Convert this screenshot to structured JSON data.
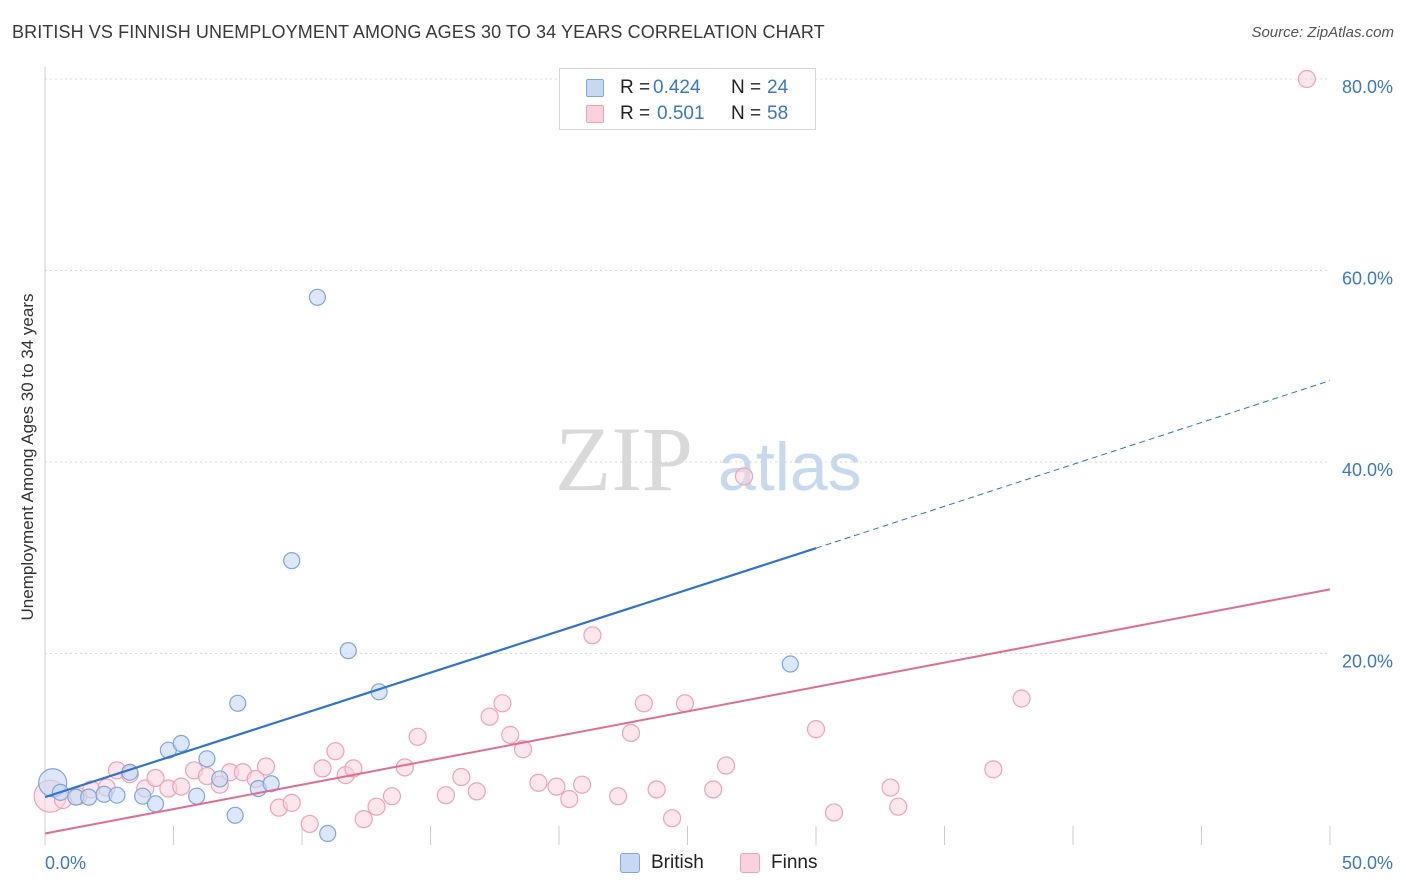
{
  "title": "BRITISH VS FINNISH UNEMPLOYMENT AMONG AGES 30 TO 34 YEARS CORRELATION CHART",
  "source": "Source: ZipAtlas.com",
  "watermark": {
    "zip": "ZIP",
    "atlas": "atlas"
  },
  "legend": {
    "british": {
      "r_label": "R =",
      "r_value": "0.424",
      "n_label": "N =",
      "n_value": "24"
    },
    "finns": {
      "r_label": "R =",
      "r_value": "0.501",
      "n_label": "N =",
      "n_value": "58"
    }
  },
  "colors": {
    "british_fill": "#c5d9f5",
    "british_stroke": "#7ea7dd",
    "british_line": "#2e74d0",
    "finns_fill": "#fbd1dd",
    "finns_stroke": "#eea3b9",
    "finns_line": "#e06d94",
    "axis_text": "#3a78cc",
    "grid": "#d9d9d9"
  },
  "chart_data": {
    "type": "scatter",
    "title": "BRITISH VS FINNISH UNEMPLOYMENT AMONG AGES 30 TO 34 YEARS CORRELATION CHART",
    "xlabel": "",
    "ylabel": "Unemployment Among Ages 30 to 34 years",
    "xlim": [
      0,
      50
    ],
    "ylim": [
      0,
      82
    ],
    "x_tick_labels": [
      "0.0%",
      "50.0%"
    ],
    "y_ticks": [
      20,
      40,
      60,
      80
    ],
    "y_tick_labels": [
      "20.0%",
      "40.0%",
      "60.0%",
      "80.0%"
    ],
    "grid": true,
    "legend_position": "top-center",
    "series": [
      {
        "name": "British",
        "r": 0.424,
        "n": 24,
        "points": [
          [
            0.3,
            6.5
          ],
          [
            0.6,
            5.5
          ],
          [
            1.2,
            5.0
          ],
          [
            1.7,
            5.0
          ],
          [
            2.3,
            5.3
          ],
          [
            2.8,
            5.2
          ],
          [
            3.3,
            7.6
          ],
          [
            3.8,
            5.1
          ],
          [
            4.3,
            4.3
          ],
          [
            4.8,
            9.9
          ],
          [
            5.3,
            10.6
          ],
          [
            5.9,
            5.1
          ],
          [
            6.3,
            9.0
          ],
          [
            6.8,
            6.9
          ],
          [
            7.4,
            3.1
          ],
          [
            7.5,
            14.8
          ],
          [
            8.3,
            5.9
          ],
          [
            8.8,
            6.4
          ],
          [
            9.6,
            29.7
          ],
          [
            10.6,
            57.2
          ],
          [
            11.0,
            1.2
          ],
          [
            11.8,
            20.3
          ],
          [
            13.0,
            16.0
          ],
          [
            29.0,
            18.9
          ]
        ],
        "trend": {
          "x0": 0,
          "y0": 5.0,
          "x1": 30,
          "y1": 31.0,
          "dashed_to_x": 50,
          "dashed_to_y": 48.5
        }
      },
      {
        "name": "Finns",
        "r": 0.501,
        "n": 58,
        "points": [
          [
            0.2,
            5.1
          ],
          [
            0.7,
            4.7
          ],
          [
            1.3,
            5.1
          ],
          [
            1.8,
            5.8
          ],
          [
            2.4,
            6.0
          ],
          [
            2.8,
            7.8
          ],
          [
            3.3,
            7.4
          ],
          [
            3.9,
            5.9
          ],
          [
            4.3,
            7.0
          ],
          [
            4.8,
            5.9
          ],
          [
            5.3,
            6.1
          ],
          [
            5.8,
            7.8
          ],
          [
            6.3,
            7.2
          ],
          [
            6.8,
            6.3
          ],
          [
            7.2,
            7.6
          ],
          [
            7.7,
            7.6
          ],
          [
            8.2,
            6.9
          ],
          [
            8.6,
            8.2
          ],
          [
            9.1,
            3.9
          ],
          [
            9.6,
            4.4
          ],
          [
            10.3,
            2.2
          ],
          [
            10.8,
            8.0
          ],
          [
            11.3,
            9.8
          ],
          [
            11.7,
            7.3
          ],
          [
            12.0,
            8.0
          ],
          [
            12.4,
            2.7
          ],
          [
            12.9,
            4.0
          ],
          [
            13.5,
            5.1
          ],
          [
            14.0,
            8.1
          ],
          [
            14.5,
            11.3
          ],
          [
            15.6,
            5.2
          ],
          [
            16.2,
            7.1
          ],
          [
            16.8,
            5.6
          ],
          [
            17.3,
            13.4
          ],
          [
            17.8,
            14.8
          ],
          [
            18.1,
            11.5
          ],
          [
            18.6,
            10.0
          ],
          [
            19.2,
            6.5
          ],
          [
            19.9,
            6.1
          ],
          [
            20.4,
            4.8
          ],
          [
            20.9,
            6.3
          ],
          [
            21.3,
            21.9
          ],
          [
            22.3,
            5.1
          ],
          [
            22.8,
            11.7
          ],
          [
            23.3,
            14.8
          ],
          [
            23.8,
            5.8
          ],
          [
            24.4,
            2.8
          ],
          [
            24.9,
            14.8
          ],
          [
            26.0,
            5.8
          ],
          [
            26.5,
            8.3
          ],
          [
            27.2,
            38.5
          ],
          [
            30.0,
            12.1
          ],
          [
            30.7,
            3.4
          ],
          [
            32.9,
            6.0
          ],
          [
            33.2,
            4.0
          ],
          [
            36.9,
            7.9
          ],
          [
            38.0,
            15.3
          ],
          [
            49.1,
            80.0
          ]
        ],
        "trend": {
          "x0": 0,
          "y0": 1.2,
          "x1": 50,
          "y1": 26.7
        }
      }
    ]
  },
  "bottom_legend": {
    "british": "British",
    "finns": "Finns"
  }
}
